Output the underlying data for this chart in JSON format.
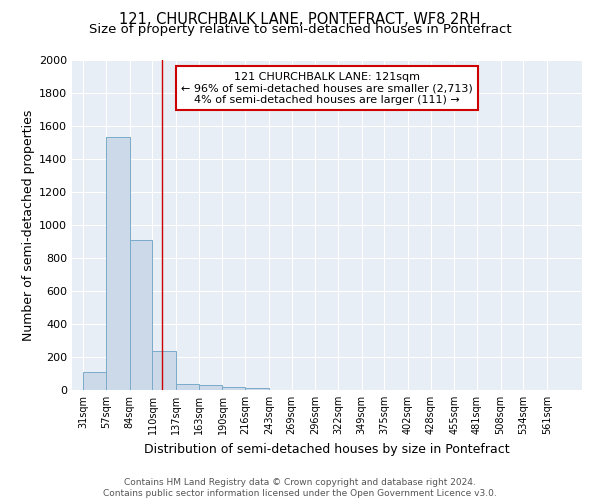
{
  "title_line1": "121, CHURCHBALK LANE, PONTEFRACT, WF8 2RH",
  "title_line2": "Size of property relative to semi-detached houses in Pontefract",
  "xlabel": "Distribution of semi-detached houses by size in Pontefract",
  "ylabel": "Number of semi-detached properties",
  "bar_edges": [
    31,
    57,
    84,
    110,
    137,
    163,
    190,
    216,
    243,
    269,
    296,
    322,
    349,
    375,
    402,
    428,
    455,
    481,
    508,
    534,
    561,
    588
  ],
  "bar_heights": [
    110,
    1535,
    910,
    235,
    35,
    30,
    20,
    15,
    0,
    0,
    0,
    0,
    0,
    0,
    0,
    0,
    0,
    0,
    0,
    0,
    0
  ],
  "bar_color": "#ccd9e8",
  "bar_edge_color": "#7aaaca",
  "property_line_x": 121,
  "property_line_color": "#cc0000",
  "annotation_text": "121 CHURCHBALK LANE: 121sqm\n← 96% of semi-detached houses are smaller (2,713)\n4% of semi-detached houses are larger (111) →",
  "annotation_box_color": "#ffffff",
  "annotation_box_edge_color": "#cc0000",
  "tick_labels": [
    "31sqm",
    "57sqm",
    "84sqm",
    "110sqm",
    "137sqm",
    "163sqm",
    "190sqm",
    "216sqm",
    "243sqm",
    "269sqm",
    "296sqm",
    "322sqm",
    "349sqm",
    "375sqm",
    "402sqm",
    "428sqm",
    "455sqm",
    "481sqm",
    "508sqm",
    "534sqm",
    "561sqm"
  ],
  "tick_positions": [
    31,
    57,
    84,
    110,
    137,
    163,
    190,
    216,
    243,
    269,
    296,
    322,
    349,
    375,
    402,
    428,
    455,
    481,
    508,
    534,
    561
  ],
  "ylim": [
    0,
    2000
  ],
  "xlim": [
    18,
    601
  ],
  "background_color": "#e8eef5",
  "footer_text": "Contains HM Land Registry data © Crown copyright and database right 2024.\nContains public sector information licensed under the Open Government Licence v3.0.",
  "title_fontsize": 10.5,
  "subtitle_fontsize": 9.5,
  "axis_label_fontsize": 9,
  "tick_fontsize": 7,
  "annotation_fontsize": 8,
  "footer_fontsize": 6.5
}
